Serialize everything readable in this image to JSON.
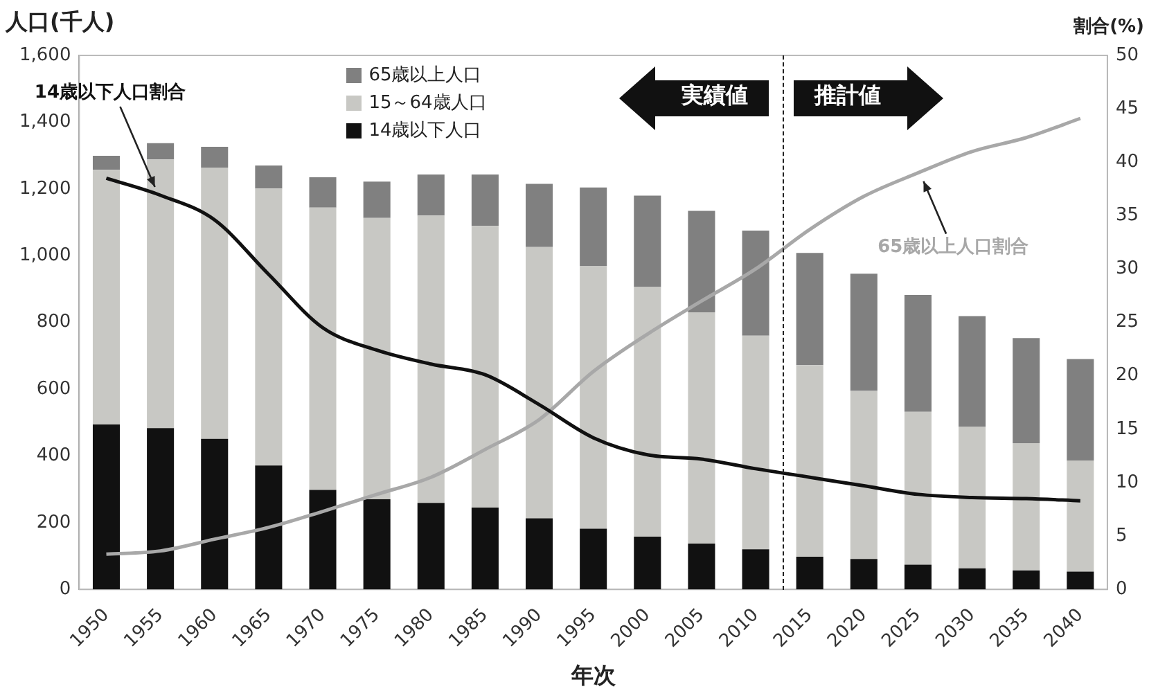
{
  "chart_data": {
    "type": "bar",
    "stacked": true,
    "xlabel": "年次",
    "ylabel": "人口(千人)",
    "y2label": "割合(%)",
    "categories": [
      "1950",
      "1955",
      "1960",
      "1965",
      "1970",
      "1975",
      "1980",
      "1985",
      "1990",
      "1995",
      "2000",
      "2005",
      "2010",
      "2015",
      "2020",
      "2025",
      "2030",
      "2035",
      "2040"
    ],
    "series": [
      {
        "name": "14歳以下人口",
        "color": "#111111",
        "values": [
          494,
          483,
          451,
          371,
          298,
          270,
          259,
          245,
          213,
          182,
          158,
          137,
          120,
          98,
          91,
          74,
          63,
          57,
          53
        ]
      },
      {
        "name": "15～64歳人口",
        "color": "#c8c8c4",
        "values": [
          763,
          805,
          813,
          830,
          846,
          843,
          861,
          844,
          813,
          787,
          748,
          693,
          640,
          574,
          504,
          458,
          424,
          381,
          333
        ]
      },
      {
        "name": "65歳以上人口",
        "color": "#808080",
        "values": [
          42,
          49,
          62,
          69,
          91,
          109,
          123,
          154,
          189,
          235,
          274,
          304,
          315,
          336,
          351,
          350,
          332,
          315,
          304
        ]
      },
      {
        "name": "14歳以下人口割合",
        "type": "line",
        "axis": "y2",
        "color": "#111111",
        "values": [
          38.5,
          36.9,
          34.6,
          29.5,
          24.5,
          22.4,
          21.1,
          20.1,
          17.3,
          14.2,
          12.6,
          12.2,
          11.3,
          10.5,
          9.7,
          8.9,
          8.6,
          8.5,
          8.3
        ]
      },
      {
        "name": "65歳以上人口割合",
        "type": "line",
        "axis": "y2",
        "color": "#a8a8a8",
        "values": [
          3.3,
          3.6,
          4.7,
          5.8,
          7.3,
          8.9,
          10.5,
          13.1,
          15.9,
          20.4,
          23.9,
          27.0,
          30.0,
          33.7,
          36.8,
          39.0,
          41.0,
          42.3,
          44.1
        ]
      }
    ],
    "ylim": [
      0,
      1600
    ],
    "yticks": [
      0,
      200,
      400,
      600,
      800,
      {
        "value": 1000,
        "label": "1,000"
      },
      {
        "value": 1200,
        "label": "1,200"
      },
      {
        "value": 1400,
        "label": "1,400"
      },
      {
        "value": 1600,
        "label": "1,600"
      }
    ],
    "y2lim": [
      0,
      50
    ],
    "y2ticks": [
      0,
      5,
      10,
      15,
      20,
      25,
      30,
      35,
      40,
      45,
      50
    ],
    "legend": "top",
    "grid": false,
    "marker": "none",
    "line_style": "solid",
    "annotations": [
      "実績値",
      "推計値"
    ]
  }
}
